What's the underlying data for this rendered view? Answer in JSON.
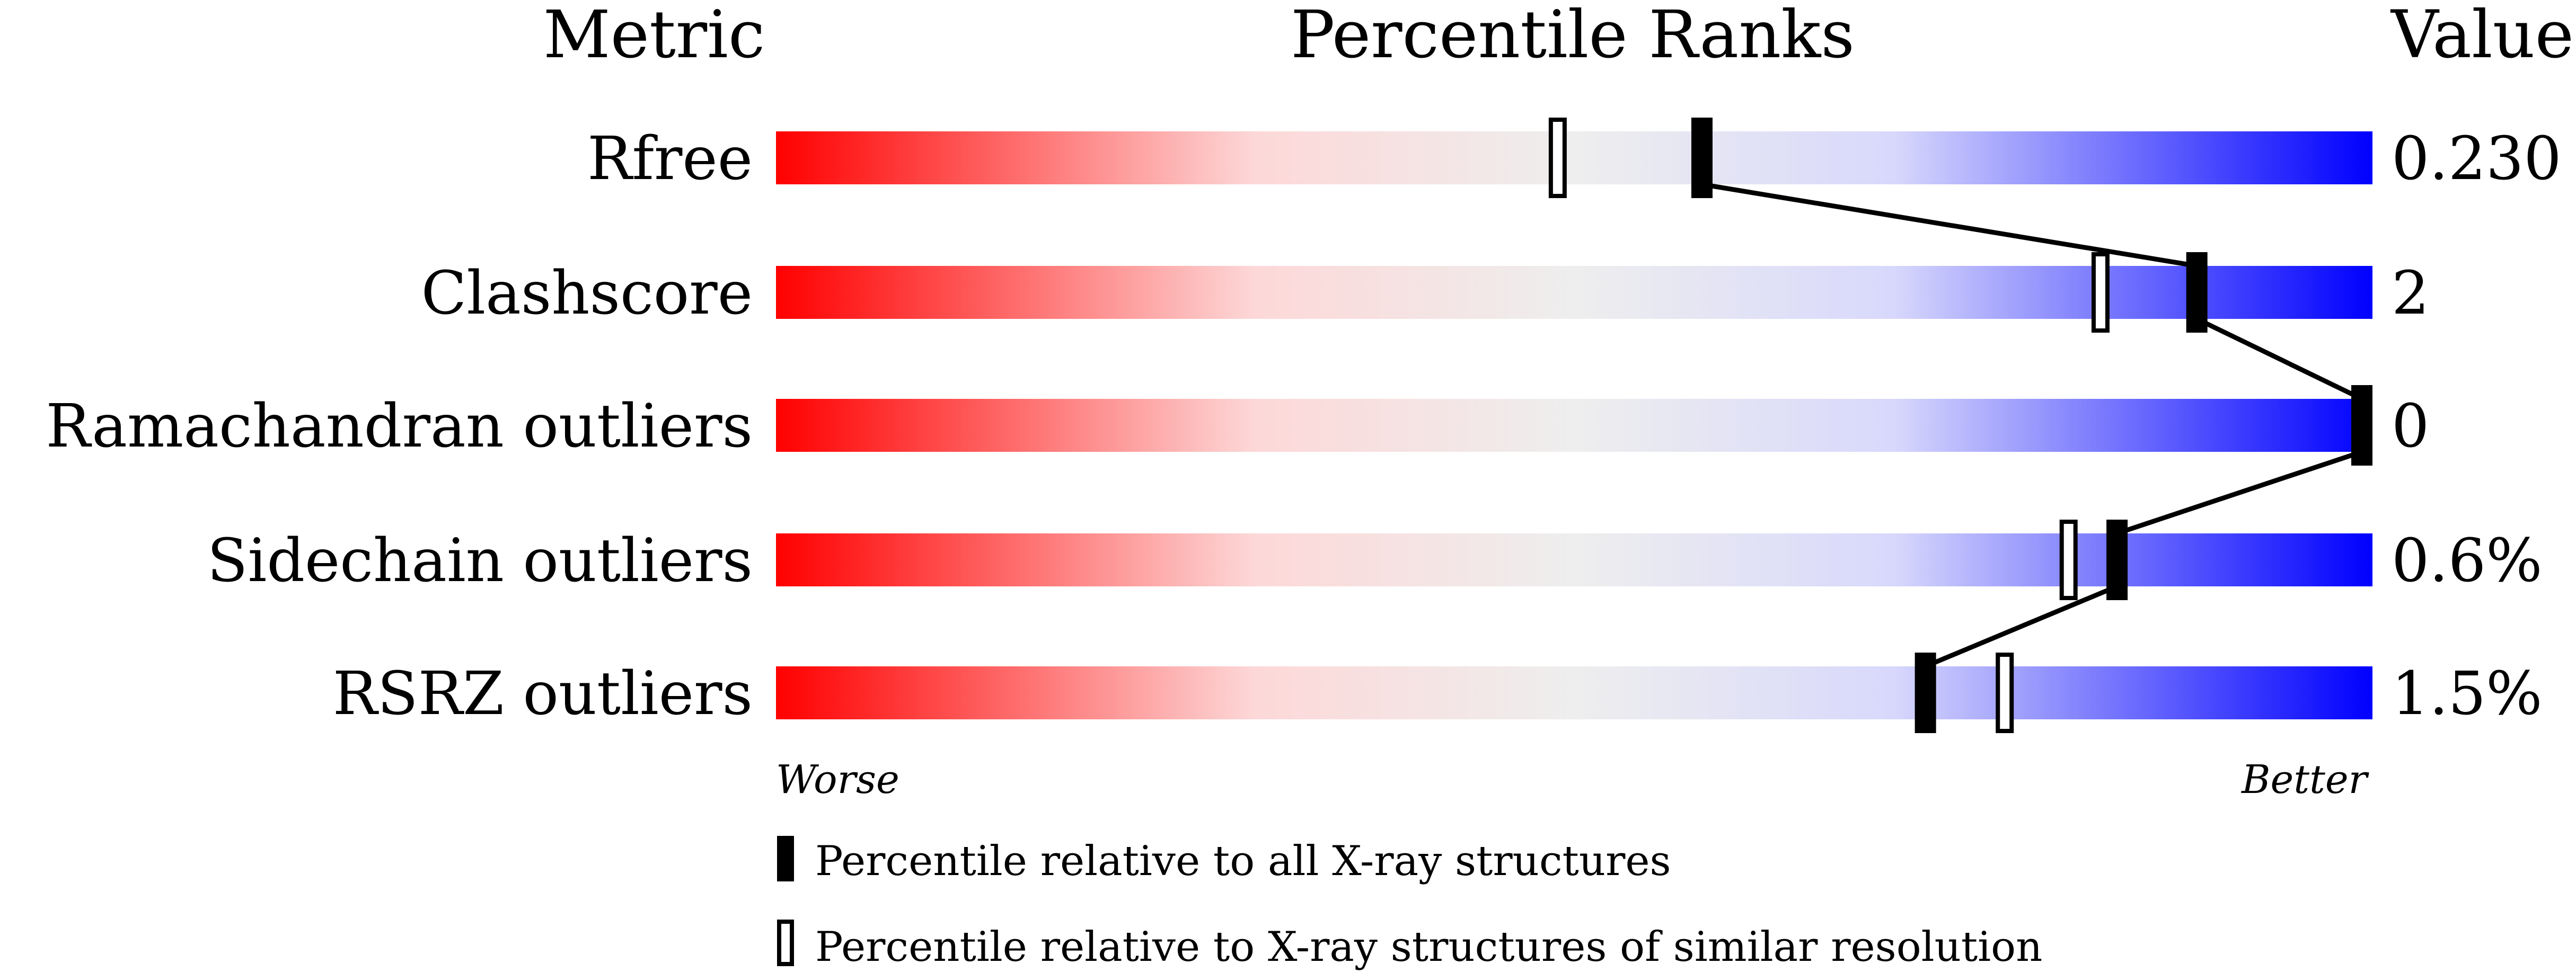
{
  "chart_data": {
    "type": "percentile-bar",
    "headers": {
      "metric": "Metric",
      "ranks": "Percentile Ranks",
      "value": "Value"
    },
    "xlim": [
      0,
      100
    ],
    "metrics": [
      {
        "name": "Rfree",
        "value": "0.230",
        "percentile_all": 58,
        "percentile_similar": 49
      },
      {
        "name": "Clashscore",
        "value": "2",
        "percentile_all": 89,
        "percentile_similar": 83
      },
      {
        "name": "Ramachandran outliers",
        "value": "0",
        "percentile_all": 100,
        "percentile_similar": 100
      },
      {
        "name": "Sidechain outliers",
        "value": "0.6%",
        "percentile_all": 84,
        "percentile_similar": 81
      },
      {
        "name": "RSRZ outliers",
        "value": "1.5%",
        "percentile_all": 72,
        "percentile_similar": 77
      }
    ],
    "axis_labels": {
      "left": "Worse",
      "right": "Better"
    },
    "legend": {
      "filled": "Percentile relative to all X-ray structures",
      "open": "Percentile relative to X-ray structures of similar resolution"
    },
    "colors": {
      "worst": "#ff0000",
      "middle": "#eeeeee",
      "light_blue": "#d8d8fc",
      "best": "#0000ff",
      "marker": "#000000"
    }
  }
}
